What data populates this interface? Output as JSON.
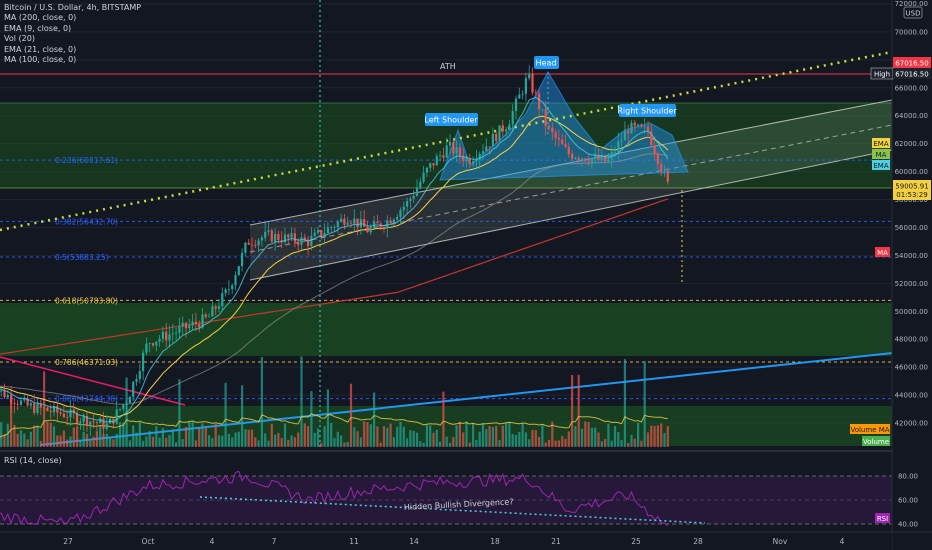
{
  "header": {
    "title": "Bitcoin / U.S. Dollar, 4h, BITSTAMP",
    "indicators": [
      "MA (200, close, 0)",
      "EMA (9, close, 0)",
      "Vol (20)",
      "EMA (21, close, 0)",
      "MA (100, close, 0)"
    ]
  },
  "price_axis": {
    "currency": "USD",
    "ticks": [
      "72000.00",
      "70000.00",
      "68000.00",
      "66000.00",
      "64000.00",
      "62000.00",
      "60000.00",
      "58000.00",
      "56000.00",
      "54000.00",
      "52000.00",
      "50000.00",
      "48000.00",
      "46000.00",
      "44000.00",
      "42000.00"
    ],
    "top_partial": "72000.00",
    "badge_price_1": "67016.50",
    "badge_high_label": "High",
    "badge_high": "67016.50",
    "badge_ema": "EMA",
    "badge_ma": "MA",
    "badge_ema2": "EMA",
    "last_price": "59005.91",
    "countdown": "01:53:29",
    "badge_ma_lower": "MA",
    "badge_volume_ma": "Volume MA",
    "badge_volume": "Volume"
  },
  "rsi_axis": {
    "ticks": [
      "80.00",
      "60.00",
      "40.00"
    ],
    "badge": "RSI"
  },
  "rsi_legend": "RSI (14, close)",
  "time_axis": [
    "27",
    "Oct",
    "4",
    "7",
    "11",
    "14",
    "18",
    "21",
    "25",
    "28",
    "Nov",
    "4"
  ],
  "annotations": {
    "ath": "ATH",
    "head": "Head",
    "left_shoulder": "Left Shoulder",
    "right_shoulder": "Right Shoulder",
    "divergence": "Hidden Bullish Divergence?"
  },
  "fib_levels": [
    {
      "label": "0.236(60817.61)",
      "price": 60817.61,
      "color": "#2962ff"
    },
    {
      "label": "0.382(56432.70)",
      "price": 56432.7,
      "color": "#2962ff"
    },
    {
      "label": "0.5(53883.25)",
      "price": 53883.25,
      "color": "#2962ff"
    },
    {
      "label": "0.618(50783.80)",
      "price": 50783.8,
      "color": "#f5d142"
    },
    {
      "label": "0.786(46371.03)",
      "price": 46371.03,
      "color": "#f5d142"
    },
    {
      "label": "0.886(43744.38)",
      "price": 43744.38,
      "color": "#2962ff"
    }
  ],
  "colors": {
    "up": "#26a69a",
    "down": "#ef5350",
    "ema9": "#4dd0e1",
    "ema21": "#f5d142",
    "ma100": "#9e9e9e",
    "ma200": "#c0392b",
    "rsi": "#9c27b0",
    "ath_line": "#f23645",
    "trend_blue": "#2196f3",
    "trend_pink": "#e91e63",
    "dotted_yellow": "#cddc39"
  },
  "chart_data": {
    "type": "candlestick",
    "symbol": "Bitcoin / U.S. Dollar",
    "interval": "4h",
    "exchange": "BITSTAMP",
    "price_range": [
      41000,
      72000
    ],
    "ath": 67016.5,
    "last": 59005.91,
    "price_path": [
      {
        "date": "2021-09-23",
        "price": 44700
      },
      {
        "date": "2021-09-25",
        "price": 43200
      },
      {
        "date": "2021-09-27",
        "price": 42600
      },
      {
        "date": "2021-09-29",
        "price": 41800
      },
      {
        "date": "2021-09-30",
        "price": 43800
      },
      {
        "date": "2021-10-01",
        "price": 47800
      },
      {
        "date": "2021-10-02",
        "price": 48300
      },
      {
        "date": "2021-10-04",
        "price": 49500
      },
      {
        "date": "2021-10-05",
        "price": 51500
      },
      {
        "date": "2021-10-06",
        "price": 55000
      },
      {
        "date": "2021-10-07",
        "price": 55400
      },
      {
        "date": "2021-10-09",
        "price": 55000
      },
      {
        "date": "2021-10-11",
        "price": 56800
      },
      {
        "date": "2021-10-12",
        "price": 55800
      },
      {
        "date": "2021-10-13",
        "price": 56500
      },
      {
        "date": "2021-10-14",
        "price": 57800
      },
      {
        "date": "2021-10-15",
        "price": 60200
      },
      {
        "date": "2021-10-16",
        "price": 61800
      },
      {
        "date": "2021-10-17",
        "price": 60800
      },
      {
        "date": "2021-10-18",
        "price": 62000
      },
      {
        "date": "2021-10-19",
        "price": 63500
      },
      {
        "date": "2021-10-20",
        "price": 66800
      },
      {
        "date": "2021-10-21",
        "price": 63000
      },
      {
        "date": "2021-10-22",
        "price": 61300
      },
      {
        "date": "2021-10-23",
        "price": 61000
      },
      {
        "date": "2021-10-24",
        "price": 60700
      },
      {
        "date": "2021-10-25",
        "price": 63100
      },
      {
        "date": "2021-10-26",
        "price": 62900
      },
      {
        "date": "2021-10-27",
        "price": 59005.91
      }
    ],
    "rsi_range": [
      30,
      90
    ],
    "rsi_path": [
      {
        "date": "2021-09-23",
        "rsi": 48
      },
      {
        "date": "2021-09-27",
        "rsi": 40
      },
      {
        "date": "2021-10-01",
        "rsi": 72
      },
      {
        "date": "2021-10-06",
        "rsi": 80
      },
      {
        "date": "2021-10-09",
        "rsi": 60
      },
      {
        "date": "2021-10-11",
        "rsi": 66
      },
      {
        "date": "2021-10-15",
        "rsi": 74
      },
      {
        "date": "2021-10-20",
        "rsi": 78
      },
      {
        "date": "2021-10-22",
        "rsi": 52
      },
      {
        "date": "2021-10-25",
        "rsi": 64
      },
      {
        "date": "2021-10-27",
        "rsi": 38
      }
    ]
  }
}
